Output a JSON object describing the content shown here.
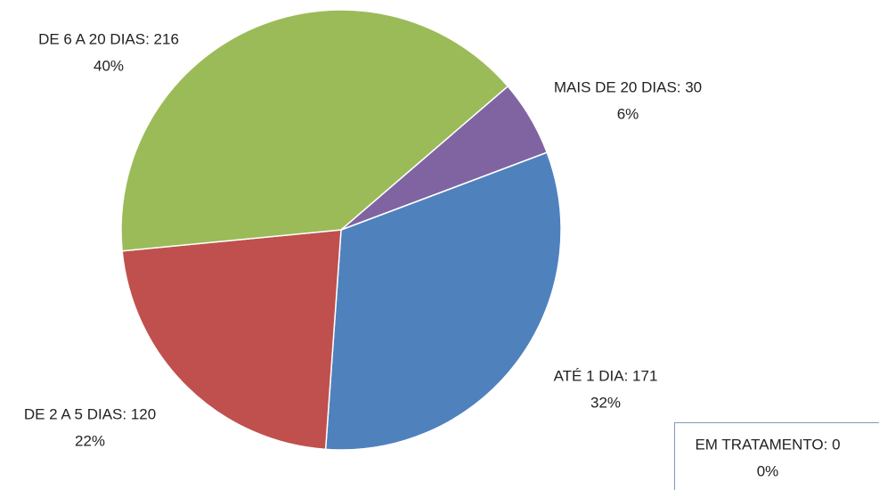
{
  "chart_data": {
    "type": "pie",
    "labels": [
      "ATÉ 1 DIA: 171",
      "DE 2 A 5 DIAS: 120",
      "DE 6 A 20 DIAS: 216",
      "MAIS DE 20 DIAS: 30",
      "EM TRATAMENTO: 0"
    ],
    "values": [
      171,
      120,
      216,
      30,
      0
    ],
    "percent_labels": [
      "32%",
      "22%",
      "40%",
      "6%",
      "0%"
    ],
    "colors": [
      "#4f81bd",
      "#c0504d",
      "#9bbb59",
      "#8064a2",
      "#4bacc6"
    ]
  }
}
